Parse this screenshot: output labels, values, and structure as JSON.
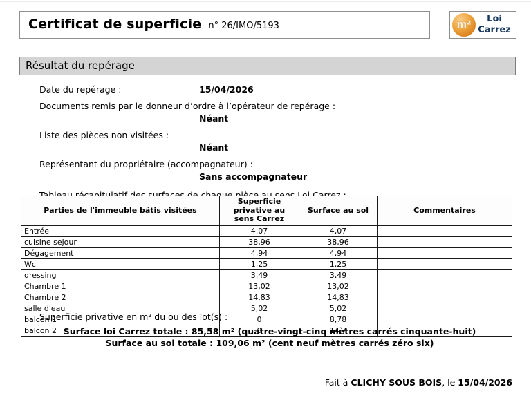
{
  "header": {
    "title": "Certificat de superficie",
    "number": "n° 26/IMO/5193",
    "logo": {
      "circle_text": "m²",
      "line1": "Loi",
      "line2": "Carrez",
      "circle_color": "#ed9b33",
      "text_color": "#17365d"
    }
  },
  "section_title": "Résultat du repérage",
  "fields": [
    {
      "label": "Date du repérage :",
      "value": "15/04/2026"
    },
    {
      "label": "Documents remis par le donneur d’ordre à l’opérateur de repérage :",
      "value": "Néant"
    },
    {
      "label": "Liste des pièces non visitées :",
      "value": "Néant"
    },
    {
      "label": "Représentant du propriétaire (accompagnateur) :",
      "value": "Sans accompagnateur"
    }
  ],
  "table_intro": "Tableau récapitulatif des surfaces de chaque pièce au sens Loi Carrez :",
  "table": {
    "headers": [
      "Parties de l'immeuble bâtis visitées",
      "Superficie privative au sens Carrez",
      "Surface au sol",
      "Commentaires"
    ],
    "rows": [
      {
        "piece": "Entrée",
        "carrez": "4,07",
        "sol": "4,07",
        "comment": ""
      },
      {
        "piece": "cuisine sejour",
        "carrez": "38,96",
        "sol": "38,96",
        "comment": ""
      },
      {
        "piece": "Dégagement",
        "carrez": "4,94",
        "sol": "4,94",
        "comment": ""
      },
      {
        "piece": "Wc",
        "carrez": "1,25",
        "sol": "1,25",
        "comment": ""
      },
      {
        "piece": "dressing",
        "carrez": "3,49",
        "sol": "3,49",
        "comment": ""
      },
      {
        "piece": "Chambre 1",
        "carrez": "13,02",
        "sol": "13,02",
        "comment": ""
      },
      {
        "piece": "Chambre 2",
        "carrez": "14,83",
        "sol": "14,83",
        "comment": ""
      },
      {
        "piece": "salle d'eau",
        "carrez": "5,02",
        "sol": "5,02",
        "comment": ""
      },
      {
        "piece": "balcon 1",
        "carrez": "0",
        "sol": "8,78",
        "comment": ""
      },
      {
        "piece": "balcon 2",
        "carrez": "0",
        "sol": "14,7",
        "comment": ""
      }
    ]
  },
  "totals": {
    "intro": "Superficie privative en m² du ou des lot(s) :",
    "carrez_total": "Surface loi Carrez totale : 85,58 m² (quatre-vingt-cinq mètres carrés cinquante-huit)",
    "sol_total": "Surface au sol totale : 109,06 m² (cent neuf mètres carrés zéro six)"
  },
  "footer": {
    "prefix": "Fait à ",
    "city": "CLICHY SOUS BOIS",
    "middle": ", le ",
    "date": "15/04/2026"
  }
}
